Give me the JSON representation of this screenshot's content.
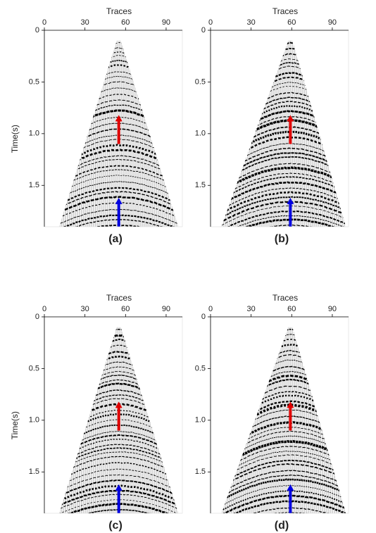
{
  "figure": {
    "panels": [
      {
        "caption": "(a)",
        "x_label": "Traces",
        "y_label": "Time(s)",
        "xlim": [
          0,
          102
        ],
        "ylim": [
          0,
          1.9
        ],
        "xticks": [
          0,
          30,
          60,
          90
        ],
        "yticks": [
          0,
          0.5,
          {
            "value": 1,
            "label": "1.0"
          },
          1.5
        ]
      },
      {
        "caption": "(b)",
        "x_label": "Traces",
        "xlim": [
          0,
          102
        ],
        "ylim": [
          0,
          1.9
        ],
        "xticks": [
          0,
          30,
          60,
          90
        ],
        "yticks": [
          0,
          0.5,
          {
            "value": 1,
            "label": "1.0"
          },
          1.5
        ]
      },
      {
        "caption": "(c)",
        "x_label": "Traces",
        "y_label": "Time(s)",
        "xlim": [
          0,
          102
        ],
        "ylim": [
          0,
          1.9
        ],
        "xticks": [
          0,
          30,
          60,
          90
        ],
        "yticks": [
          0,
          0.5,
          {
            "value": 1,
            "label": "1.0"
          },
          1.5
        ]
      },
      {
        "caption": "(d)",
        "x_label": "Traces",
        "xlim": [
          0,
          102
        ],
        "ylim": [
          0,
          1.9
        ],
        "xticks": [
          0,
          30,
          60,
          90
        ],
        "yticks": [
          0,
          0.5,
          {
            "value": 1,
            "label": "1.0"
          },
          1.5
        ]
      }
    ]
  }
}
